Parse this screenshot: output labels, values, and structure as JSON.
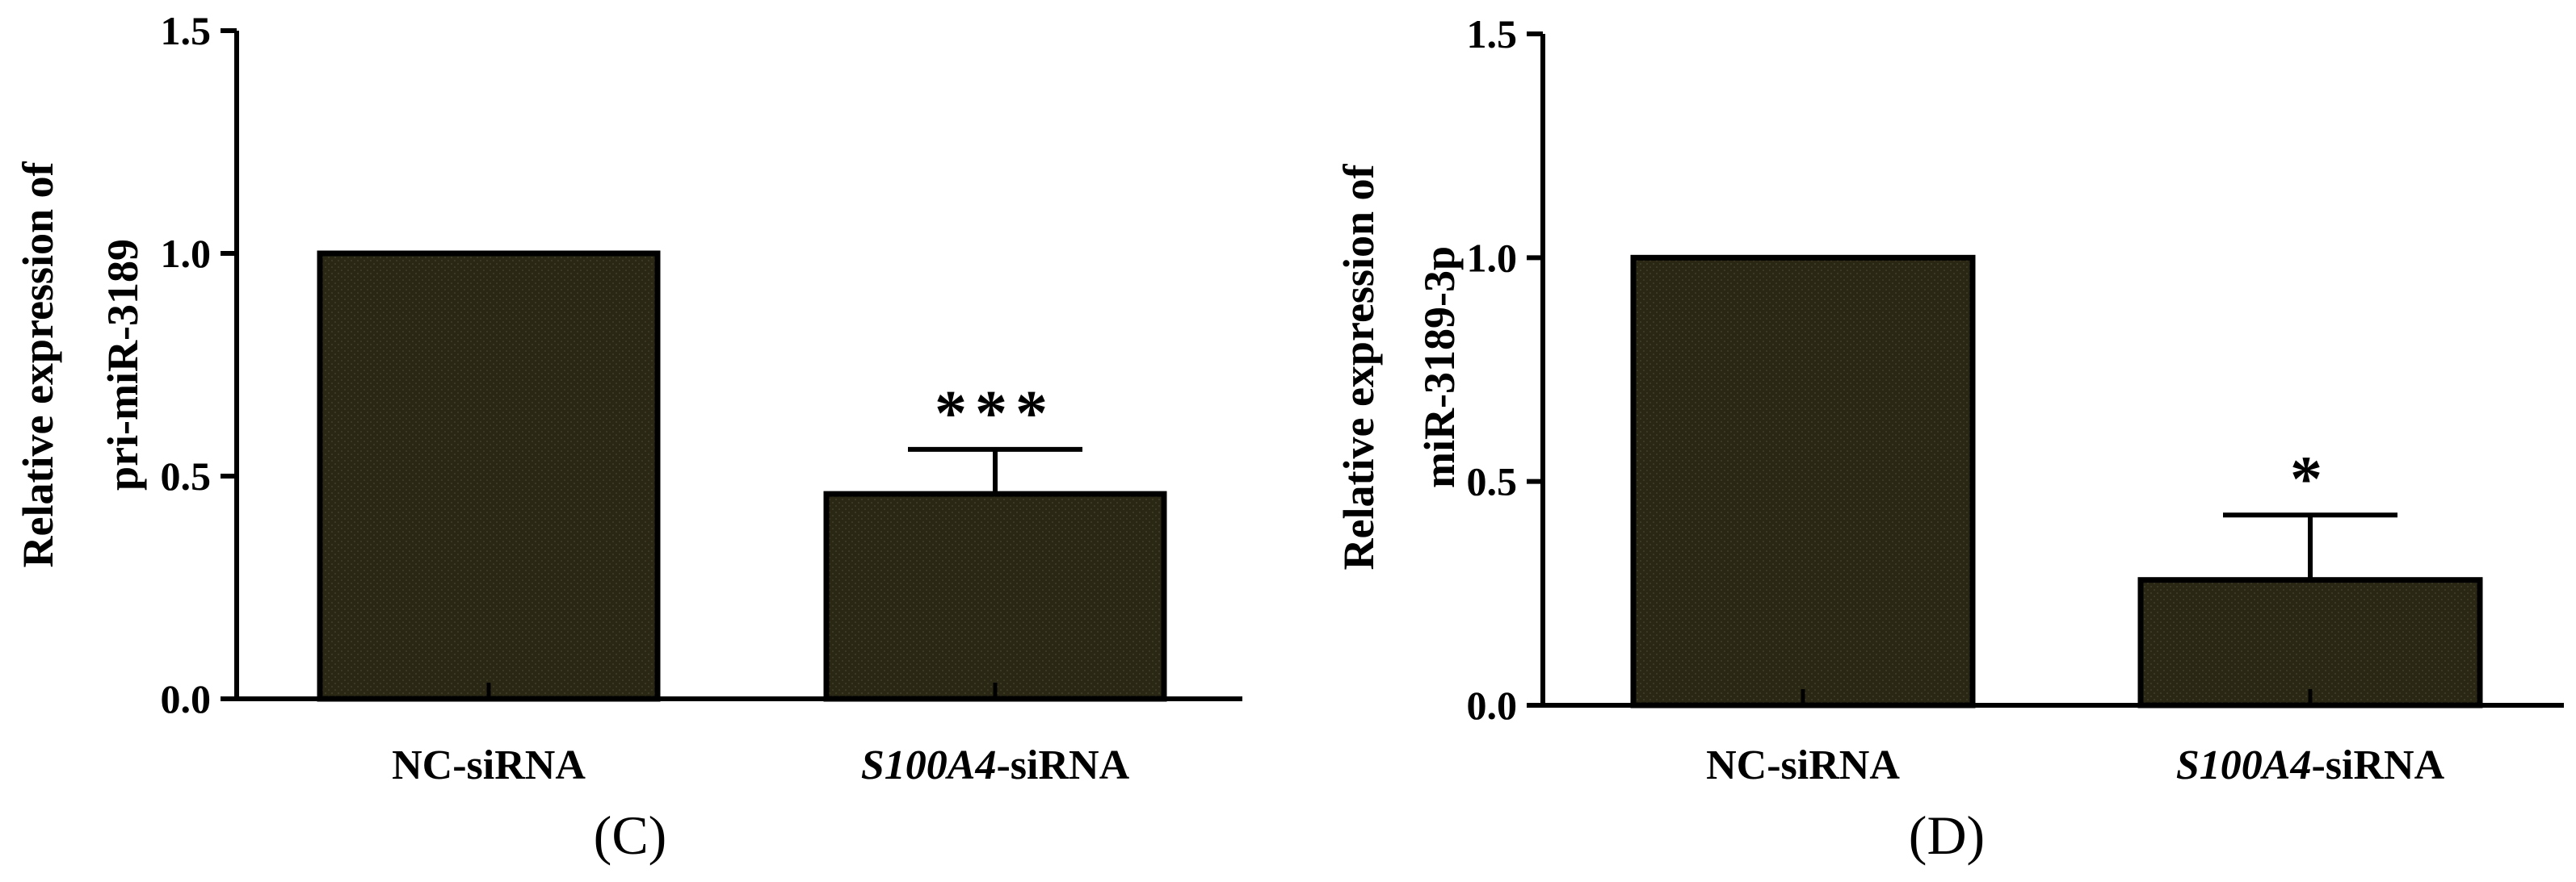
{
  "colors": {
    "bar_fill": "#2a2814",
    "stroke": "#000000",
    "background": "#ffffff"
  },
  "chart_data": [
    {
      "type": "bar",
      "panel_label": "(C)",
      "ylabel_lines": [
        "Relative expression of",
        "pri-miR-3189"
      ],
      "xlabel": "",
      "ylim": [
        0,
        1.5
      ],
      "yticks": [
        "0.0",
        "0.5",
        "1.0",
        "1.5"
      ],
      "grid": false,
      "categories": [
        {
          "italic": "",
          "text": "NC-siRNA"
        },
        {
          "italic": "S100A4",
          "text": "-siRNA"
        }
      ],
      "values": [
        1.0,
        0.46
      ],
      "error": [
        0.0,
        0.1
      ],
      "significance": [
        "",
        "***"
      ]
    },
    {
      "type": "bar",
      "panel_label": "(D)",
      "ylabel_lines": [
        "Relative expression of",
        "miR-3189-3p"
      ],
      "xlabel": "",
      "ylim": [
        0,
        1.5
      ],
      "yticks": [
        "0.0",
        "0.5",
        "1.0",
        "1.5"
      ],
      "grid": false,
      "categories": [
        {
          "italic": "",
          "text": "NC-siRNA"
        },
        {
          "italic": "S100A4",
          "text": "-siRNA"
        }
      ],
      "values": [
        1.0,
        0.28
      ],
      "error": [
        0.0,
        0.145
      ],
      "significance": [
        "",
        "*"
      ]
    }
  ]
}
